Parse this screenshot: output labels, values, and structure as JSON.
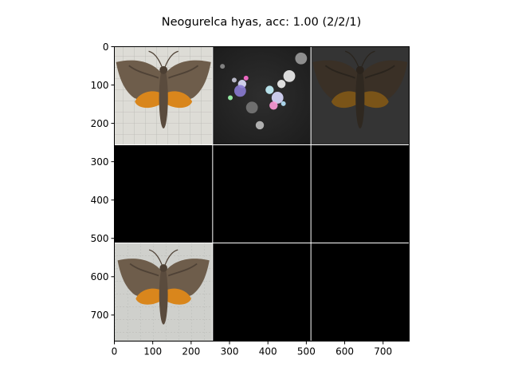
{
  "chart_data": {
    "type": "image-grid",
    "title": "Neogurelca hyas, acc: 1.00 (2/2/1)",
    "xlim": [
      0,
      768
    ],
    "ylim": [
      768,
      0
    ],
    "xticks": [
      0,
      100,
      200,
      300,
      400,
      500,
      600,
      700
    ],
    "yticks": [
      0,
      100,
      200,
      300,
      400,
      500,
      600,
      700
    ],
    "grid_rows": 3,
    "grid_cols": 3,
    "cell_size": 256,
    "cells": [
      {
        "row": 0,
        "col": 0,
        "content": "moth-photo",
        "background": "#dcdcd6"
      },
      {
        "row": 0,
        "col": 1,
        "content": "saliency-map",
        "background": "#262626"
      },
      {
        "row": 0,
        "col": 2,
        "content": "masked-moth",
        "background": "#343434"
      },
      {
        "row": 1,
        "col": 0,
        "content": "empty",
        "background": "#000000"
      },
      {
        "row": 1,
        "col": 1,
        "content": "empty",
        "background": "#000000"
      },
      {
        "row": 1,
        "col": 2,
        "content": "empty",
        "background": "#000000"
      },
      {
        "row": 2,
        "col": 0,
        "content": "moth-photo",
        "background": "#cfd0cc"
      },
      {
        "row": 2,
        "col": 1,
        "content": "empty",
        "background": "#000000"
      },
      {
        "row": 2,
        "col": 2,
        "content": "empty",
        "background": "#000000"
      }
    ],
    "colors": {
      "separator": "#ffffff",
      "wing": "#6b5a48",
      "orange": "#d9861c"
    }
  }
}
